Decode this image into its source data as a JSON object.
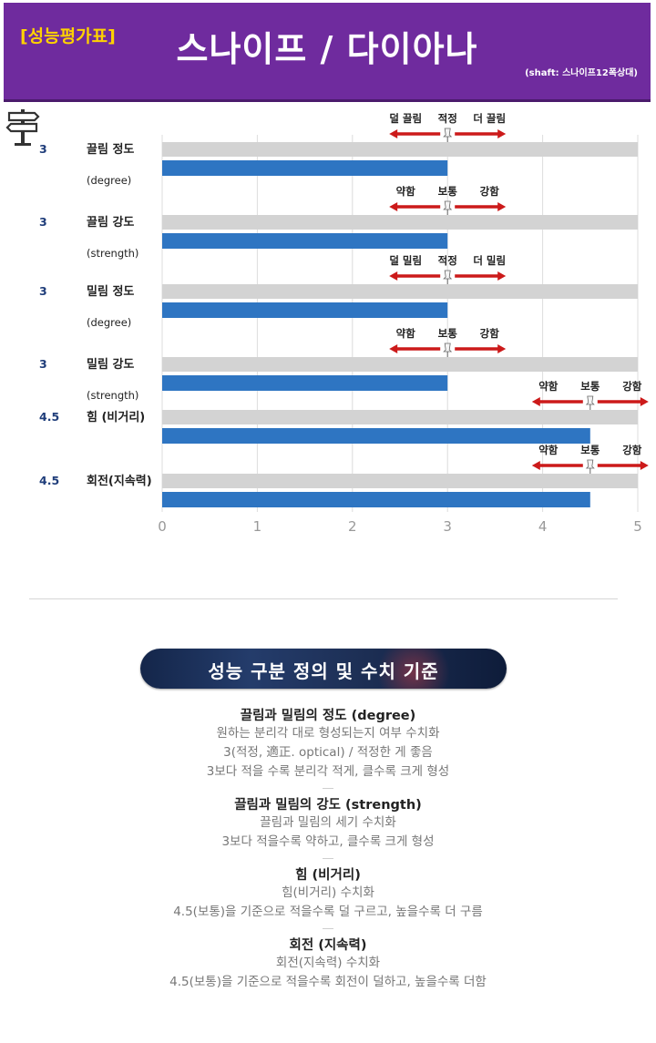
{
  "header": {
    "badge": "[성능평가표]",
    "title": "스나이프 / 다이아나",
    "shaft_note": "(shaft: 스나이프12폭상대)"
  },
  "colors": {
    "header_bg": "#6f2b9e",
    "badge": "#ffd200",
    "bar": "#2e75c2",
    "track": "#d3d3d3",
    "arrow": "#cc1a1a",
    "score": "#1f3d7a"
  },
  "icons": {
    "signpost": "signpost-icon",
    "pin": "push-pin-icon"
  },
  "chart_data": {
    "type": "bar",
    "orientation": "horizontal",
    "xlim": [
      0,
      5
    ],
    "xticks": [
      "0",
      "1",
      "2",
      "3",
      "4",
      "5"
    ],
    "grid": true,
    "categories": [
      {
        "name": "끌림 정도",
        "sub": "(degree)",
        "score_label": "3",
        "value": 3,
        "scale": {
          "left": "덜 끌림",
          "mid": "적정",
          "right": "더 끌림",
          "center": 3
        }
      },
      {
        "name": "끌림 강도",
        "sub": "(strength)",
        "score_label": "3",
        "value": 3,
        "scale": {
          "left": "약함",
          "mid": "보통",
          "right": "강함",
          "center": 3
        }
      },
      {
        "name": "밀림 정도",
        "sub": "(degree)",
        "score_label": "3",
        "value": 3,
        "scale": {
          "left": "덜 밀림",
          "mid": "적정",
          "right": "더 밀림",
          "center": 3
        }
      },
      {
        "name": "밀림 강도",
        "sub": "(strength)",
        "score_label": "3",
        "value": 3,
        "scale": {
          "left": "약함",
          "mid": "보통",
          "right": "강함",
          "center": 3
        }
      },
      {
        "name": "힘 (비거리)",
        "sub": "",
        "score_label": "4.5",
        "value": 4.5,
        "scale": {
          "left": "약함",
          "mid": "보통",
          "right": "강함",
          "center": 4.5
        }
      },
      {
        "name": "회전(지속력)",
        "sub": "",
        "score_label": "4.5",
        "value": 4.5,
        "scale": {
          "left": "약함",
          "mid": "보통",
          "right": "강함",
          "center": 4.5
        }
      }
    ]
  },
  "definitions": {
    "heading": "성능 구분 정의 및 수치 기준",
    "sections": [
      {
        "title": "끌림과 밀림의 정도 (degree)",
        "lines": [
          "원하는 분리각 대로 형성되는지 여부 수치화",
          "3(적정, 適正. optical) / 적정한 게 좋음",
          "3보다 적을 수록 분리각 적게, 클수록 크게 형성"
        ]
      },
      {
        "title": "끌림과 밀림의 강도 (strength)",
        "lines": [
          "끌림과 밀림의 세기 수치화",
          "3보다 적을수록 약하고, 클수록 크게 형성"
        ]
      },
      {
        "title": "힘 (비거리)",
        "lines": [
          "힘(비거리) 수치화",
          "4.5(보통)을 기준으로 적을수록 덜 구르고, 높을수록 더 구름"
        ]
      },
      {
        "title": "회전 (지속력)",
        "lines": [
          "회전(지속력) 수치화",
          "4.5(보통)을 기준으로 적을수록 회전이 덜하고, 높을수록 더함"
        ]
      }
    ]
  }
}
